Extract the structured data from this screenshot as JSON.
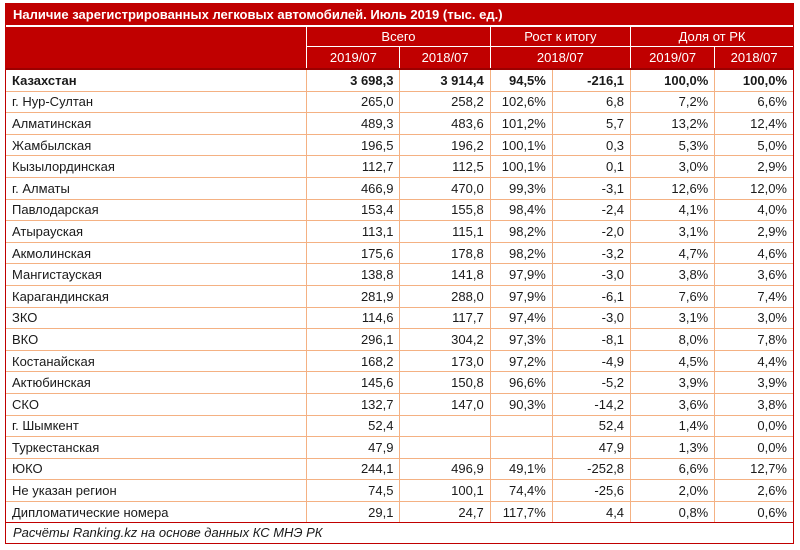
{
  "title": "Наличие зарегистрированных легковых автомобилей. Июль 2019 (тыс. ед.)",
  "footer": "Расчёты Ranking.kz на основе данных КС МНЭ РК",
  "colors": {
    "accent_red": "#C00000",
    "header_bottom_line": "#9B0000",
    "grid_line": "#F4B183",
    "header_divider": "#FFFFFF",
    "header_text": "#FFFFFF",
    "body_text": "#1A1A1A"
  },
  "header": {
    "groups": [
      {
        "label": "Всего",
        "children": [
          "2019/07",
          "2018/07"
        ]
      },
      {
        "label": "Рост к итогу",
        "children": [
          "2018/07"
        ]
      },
      {
        "label": "Доля от РК",
        "children": [
          "2019/07",
          "2018/07"
        ]
      }
    ]
  },
  "table": {
    "rows": [
      {
        "region": "Казахстан",
        "bold": true,
        "values": [
          "3 698,3",
          "3 914,4",
          "94,5%",
          "-216,1",
          "100,0%",
          "100,0%"
        ]
      },
      {
        "region": "г. Нур-Султан",
        "bold": false,
        "values": [
          "265,0",
          "258,2",
          "102,6%",
          "6,8",
          "7,2%",
          "6,6%"
        ]
      },
      {
        "region": "Алматинская",
        "bold": false,
        "values": [
          "489,3",
          "483,6",
          "101,2%",
          "5,7",
          "13,2%",
          "12,4%"
        ]
      },
      {
        "region": "Жамбылская",
        "bold": false,
        "values": [
          "196,5",
          "196,2",
          "100,1%",
          "0,3",
          "5,3%",
          "5,0%"
        ]
      },
      {
        "region": "Кызылординская",
        "bold": false,
        "values": [
          "112,7",
          "112,5",
          "100,1%",
          "0,1",
          "3,0%",
          "2,9%"
        ]
      },
      {
        "region": "г. Алматы",
        "bold": false,
        "values": [
          "466,9",
          "470,0",
          "99,3%",
          "-3,1",
          "12,6%",
          "12,0%"
        ]
      },
      {
        "region": "Павлодарская",
        "bold": false,
        "values": [
          "153,4",
          "155,8",
          "98,4%",
          "-2,4",
          "4,1%",
          "4,0%"
        ]
      },
      {
        "region": "Атырауская",
        "bold": false,
        "values": [
          "113,1",
          "115,1",
          "98,2%",
          "-2,0",
          "3,1%",
          "2,9%"
        ]
      },
      {
        "region": "Акмолинская",
        "bold": false,
        "values": [
          "175,6",
          "178,8",
          "98,2%",
          "-3,2",
          "4,7%",
          "4,6%"
        ]
      },
      {
        "region": "Мангистауская",
        "bold": false,
        "values": [
          "138,8",
          "141,8",
          "97,9%",
          "-3,0",
          "3,8%",
          "3,6%"
        ]
      },
      {
        "region": "Карагандинская",
        "bold": false,
        "values": [
          "281,9",
          "288,0",
          "97,9%",
          "-6,1",
          "7,6%",
          "7,4%"
        ]
      },
      {
        "region": "ЗКО",
        "bold": false,
        "values": [
          "114,6",
          "117,7",
          "97,4%",
          "-3,0",
          "3,1%",
          "3,0%"
        ]
      },
      {
        "region": "ВКО",
        "bold": false,
        "values": [
          "296,1",
          "304,2",
          "97,3%",
          "-8,1",
          "8,0%",
          "7,8%"
        ]
      },
      {
        "region": "Костанайская",
        "bold": false,
        "values": [
          "168,2",
          "173,0",
          "97,2%",
          "-4,9",
          "4,5%",
          "4,4%"
        ]
      },
      {
        "region": "Актюбинская",
        "bold": false,
        "values": [
          "145,6",
          "150,8",
          "96,6%",
          "-5,2",
          "3,9%",
          "3,9%"
        ]
      },
      {
        "region": "СКО",
        "bold": false,
        "values": [
          "132,7",
          "147,0",
          "90,3%",
          "-14,2",
          "3,6%",
          "3,8%"
        ]
      },
      {
        "region": "г. Шымкент",
        "bold": false,
        "values": [
          "52,4",
          "",
          "",
          "52,4",
          "1,4%",
          "0,0%"
        ]
      },
      {
        "region": "Туркестанская",
        "bold": false,
        "values": [
          "47,9",
          "",
          "",
          "47,9",
          "1,3%",
          "0,0%"
        ]
      },
      {
        "region": "ЮКО",
        "bold": false,
        "values": [
          "244,1",
          "496,9",
          "49,1%",
          "-252,8",
          "6,6%",
          "12,7%"
        ]
      },
      {
        "region": "Не указан регион",
        "bold": false,
        "values": [
          "74,5",
          "100,1",
          "74,4%",
          "-25,6",
          "2,0%",
          "2,6%"
        ]
      },
      {
        "region": "Дипломатические номера",
        "bold": false,
        "values": [
          "29,1",
          "24,7",
          "117,7%",
          "4,4",
          "0,8%",
          "0,6%"
        ]
      }
    ]
  },
  "chart_data": {
    "type": "table",
    "title": "Наличие зарегистрированных легковых автомобилей. Июль 2019 (тыс. ед.)",
    "columns": [
      "Регион",
      "Всего 2019/07",
      "Всего 2018/07",
      "Рост к итогу 2018/07 (%)",
      "Рост к итогу 2018/07 (абс.)",
      "Доля от РК 2019/07 (%)",
      "Доля от РК 2018/07 (%)"
    ],
    "rows": [
      [
        "Казахстан",
        3698.3,
        3914.4,
        94.5,
        -216.1,
        100.0,
        100.0
      ],
      [
        "г. Нур-Султан",
        265.0,
        258.2,
        102.6,
        6.8,
        7.2,
        6.6
      ],
      [
        "Алматинская",
        489.3,
        483.6,
        101.2,
        5.7,
        13.2,
        12.4
      ],
      [
        "Жамбылская",
        196.5,
        196.2,
        100.1,
        0.3,
        5.3,
        5.0
      ],
      [
        "Кызылординская",
        112.7,
        112.5,
        100.1,
        0.1,
        3.0,
        2.9
      ],
      [
        "г. Алматы",
        466.9,
        470.0,
        99.3,
        -3.1,
        12.6,
        12.0
      ],
      [
        "Павлодарская",
        153.4,
        155.8,
        98.4,
        -2.4,
        4.1,
        4.0
      ],
      [
        "Атырауская",
        113.1,
        115.1,
        98.2,
        -2.0,
        3.1,
        2.9
      ],
      [
        "Акмолинская",
        175.6,
        178.8,
        98.2,
        -3.2,
        4.7,
        4.6
      ],
      [
        "Мангистауская",
        138.8,
        141.8,
        97.9,
        -3.0,
        3.8,
        3.6
      ],
      [
        "Карагандинская",
        281.9,
        288.0,
        97.9,
        -6.1,
        7.6,
        7.4
      ],
      [
        "ЗКО",
        114.6,
        117.7,
        97.4,
        -3.0,
        3.1,
        3.0
      ],
      [
        "ВКО",
        296.1,
        304.2,
        97.3,
        -8.1,
        8.0,
        7.8
      ],
      [
        "Костанайская",
        168.2,
        173.0,
        97.2,
        -4.9,
        4.5,
        4.4
      ],
      [
        "Актюбинская",
        145.6,
        150.8,
        96.6,
        -5.2,
        3.9,
        3.9
      ],
      [
        "СКО",
        132.7,
        147.0,
        90.3,
        -14.2,
        3.6,
        3.8
      ],
      [
        "г. Шымкент",
        52.4,
        null,
        null,
        52.4,
        1.4,
        0.0
      ],
      [
        "Туркестанская",
        47.9,
        null,
        null,
        47.9,
        1.3,
        0.0
      ],
      [
        "ЮКО",
        244.1,
        496.9,
        49.1,
        -252.8,
        6.6,
        12.7
      ],
      [
        "Не указан регион",
        74.5,
        100.1,
        74.4,
        -25.6,
        2.0,
        2.6
      ],
      [
        "Дипломатические номера",
        29.1,
        24.7,
        117.7,
        4.4,
        0.8,
        0.6
      ]
    ],
    "footnote": "Расчёты Ranking.kz на основе данных КС МНЭ РК"
  }
}
